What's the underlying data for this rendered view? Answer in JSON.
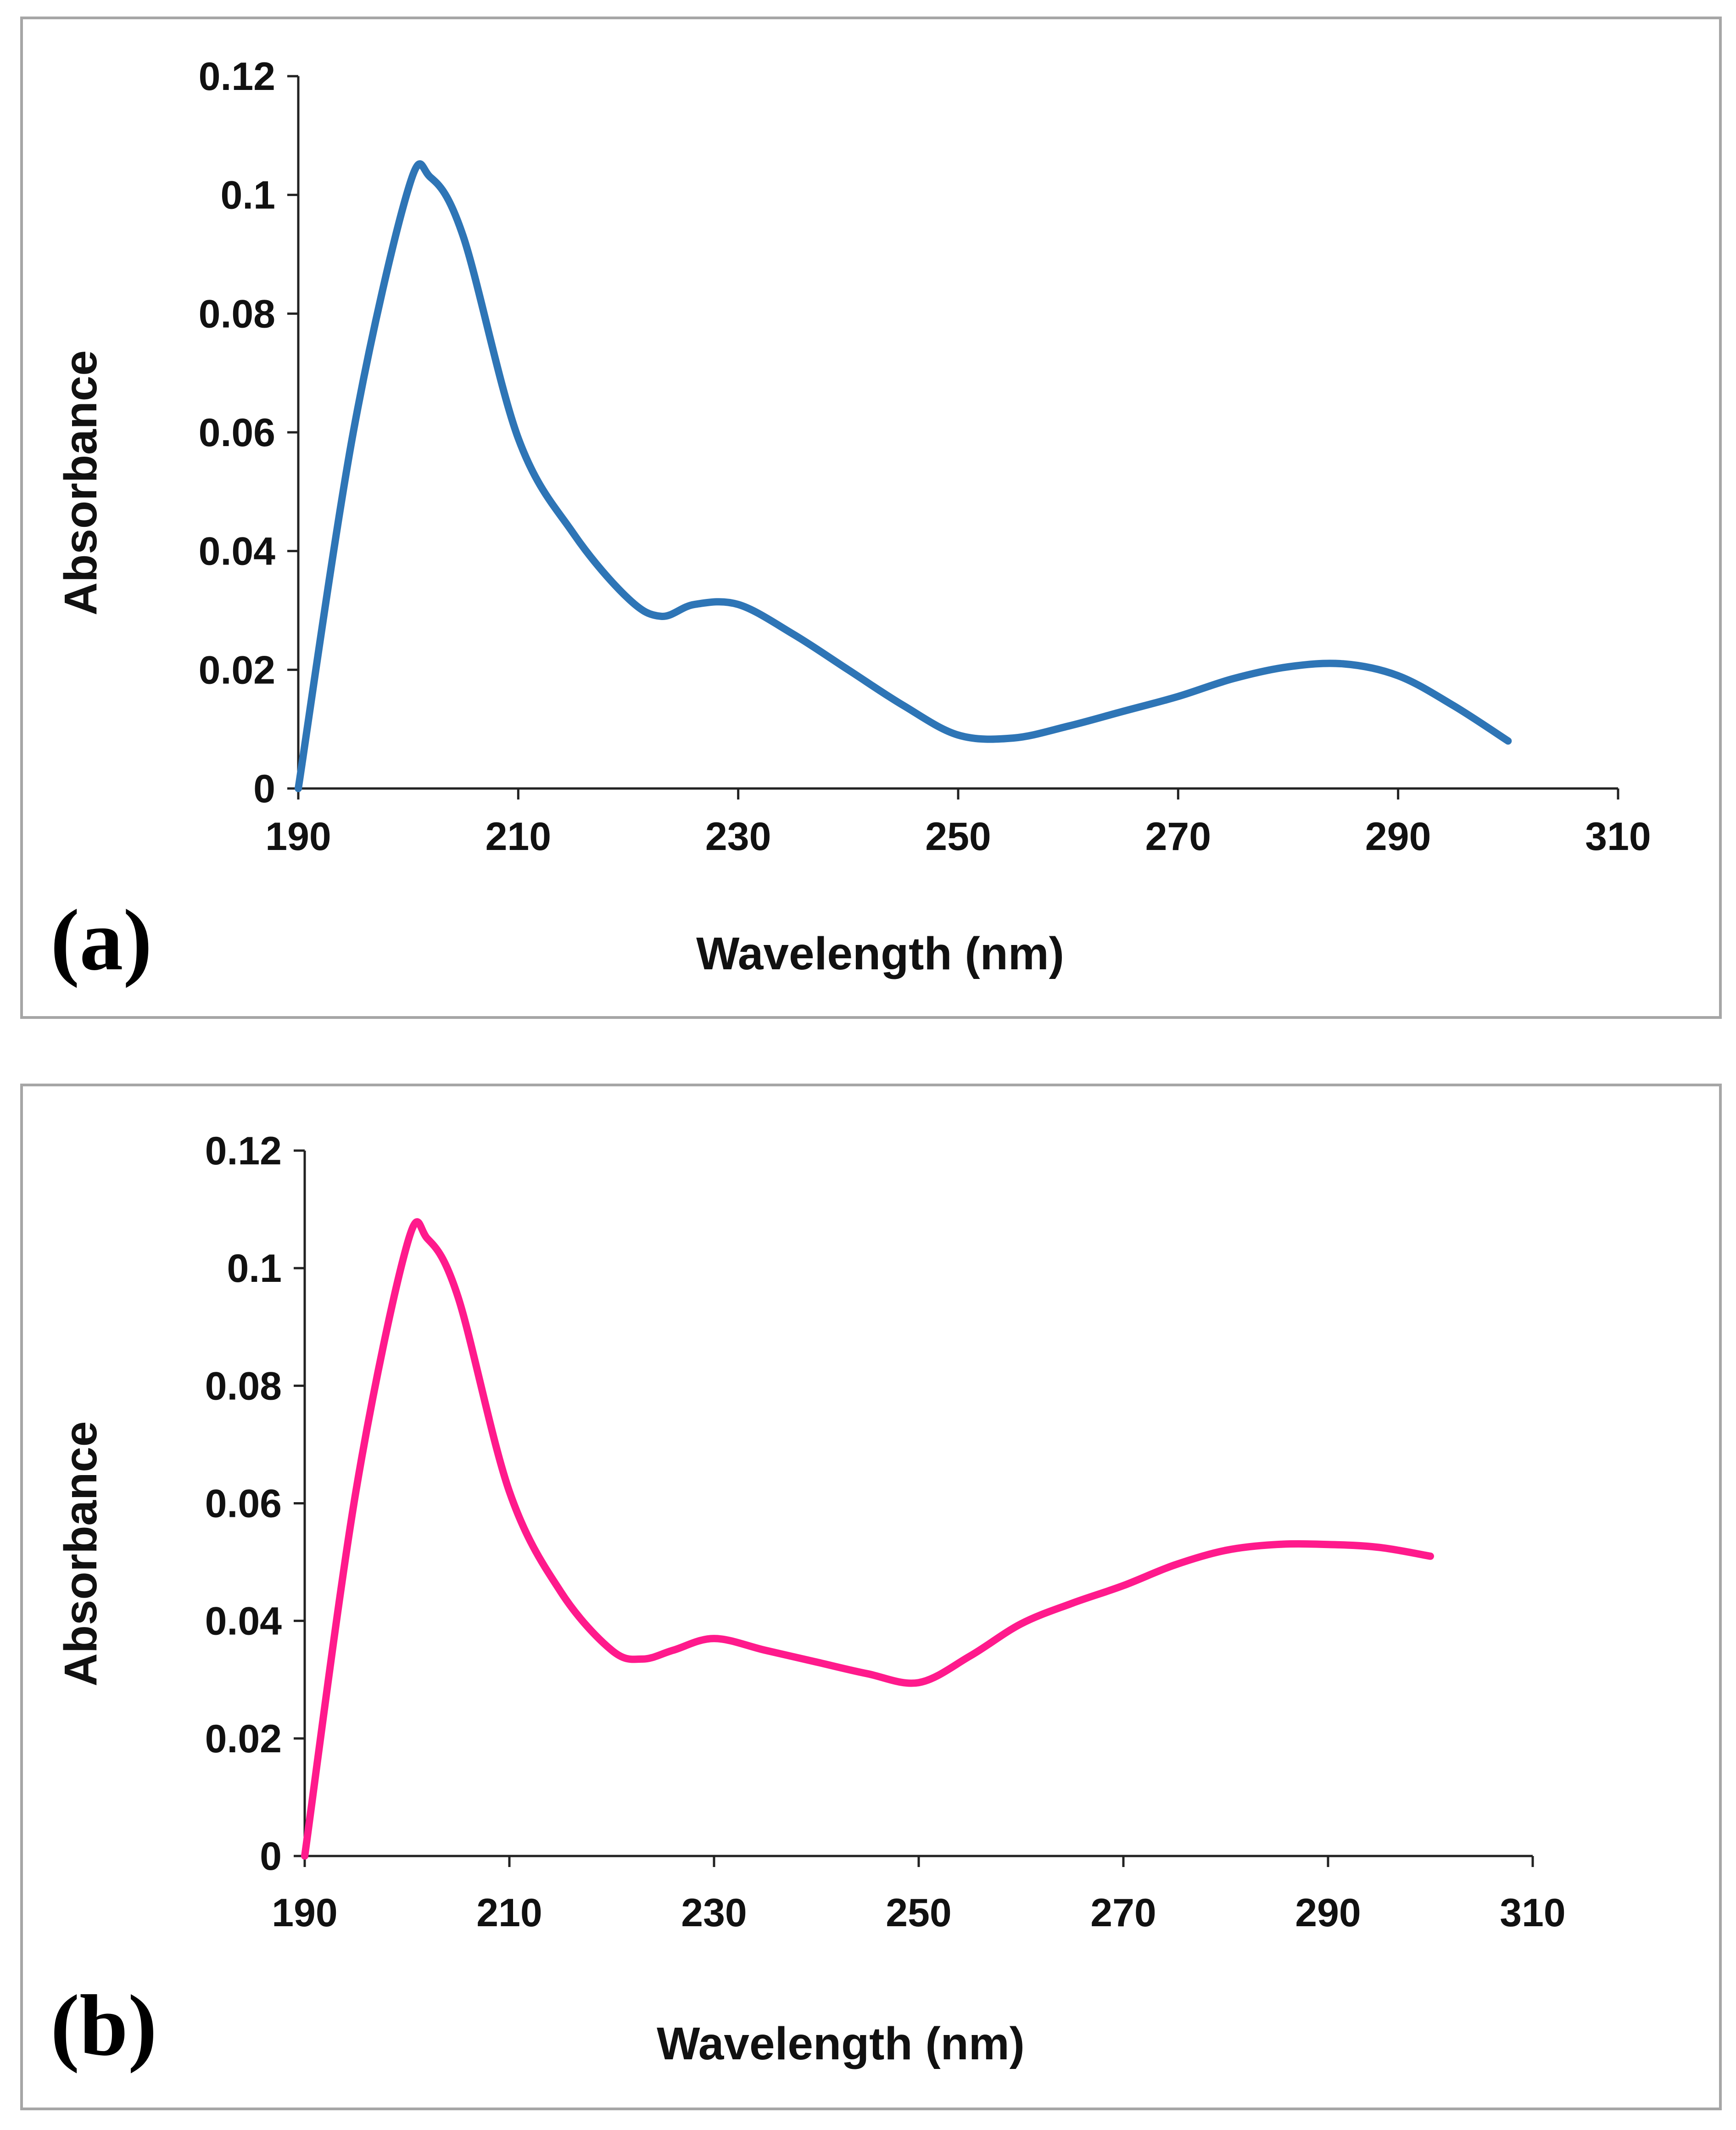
{
  "chart_data": [
    {
      "type": "line",
      "panel_label": "(a)",
      "xlabel": "Wavelength (nm)",
      "ylabel": "Absorbance",
      "xlim": [
        190,
        310
      ],
      "ylim": [
        0,
        0.12
      ],
      "x_ticks": [
        "190",
        "210",
        "230",
        "250",
        "270",
        "290",
        "310"
      ],
      "y_ticks": [
        "0",
        "0.02",
        "0.04",
        "0.06",
        "0.08",
        "0.1",
        "0.12"
      ],
      "grid": false,
      "color": "#2e75b6",
      "x": [
        190,
        195,
        200,
        202,
        205,
        210,
        215,
        220,
        223,
        226,
        230,
        235,
        240,
        245,
        250,
        255,
        260,
        265,
        270,
        275,
        280,
        285,
        290,
        295,
        300
      ],
      "y": [
        0.0,
        0.06,
        0.101,
        0.103,
        0.093,
        0.059,
        0.043,
        0.032,
        0.029,
        0.031,
        0.031,
        0.026,
        0.02,
        0.014,
        0.009,
        0.0085,
        0.0105,
        0.013,
        0.0155,
        0.0185,
        0.0205,
        0.021,
        0.019,
        0.014,
        0.008
      ]
    },
    {
      "type": "line",
      "panel_label": "(b)",
      "xlabel": "Wavelength (nm)",
      "ylabel": "Absorbance",
      "xlim": [
        190,
        310
      ],
      "ylim": [
        0,
        0.12
      ],
      "x_ticks": [
        "190",
        "210",
        "230",
        "250",
        "270",
        "290",
        "310"
      ],
      "y_ticks": [
        "0",
        "0.02",
        "0.04",
        "0.06",
        "0.08",
        "0.1",
        "0.12"
      ],
      "grid": false,
      "color": "#ff1a8c",
      "x": [
        190,
        195,
        200,
        202,
        205,
        210,
        215,
        220,
        223,
        226,
        230,
        235,
        240,
        245,
        250,
        255,
        260,
        265,
        270,
        275,
        280,
        285,
        290,
        295,
        300
      ],
      "y": [
        0.0,
        0.062,
        0.104,
        0.105,
        0.095,
        0.062,
        0.045,
        0.035,
        0.0335,
        0.035,
        0.037,
        0.035,
        0.033,
        0.031,
        0.0295,
        0.034,
        0.0395,
        0.043,
        0.046,
        0.0495,
        0.052,
        0.053,
        0.053,
        0.0525,
        0.051
      ]
    }
  ]
}
